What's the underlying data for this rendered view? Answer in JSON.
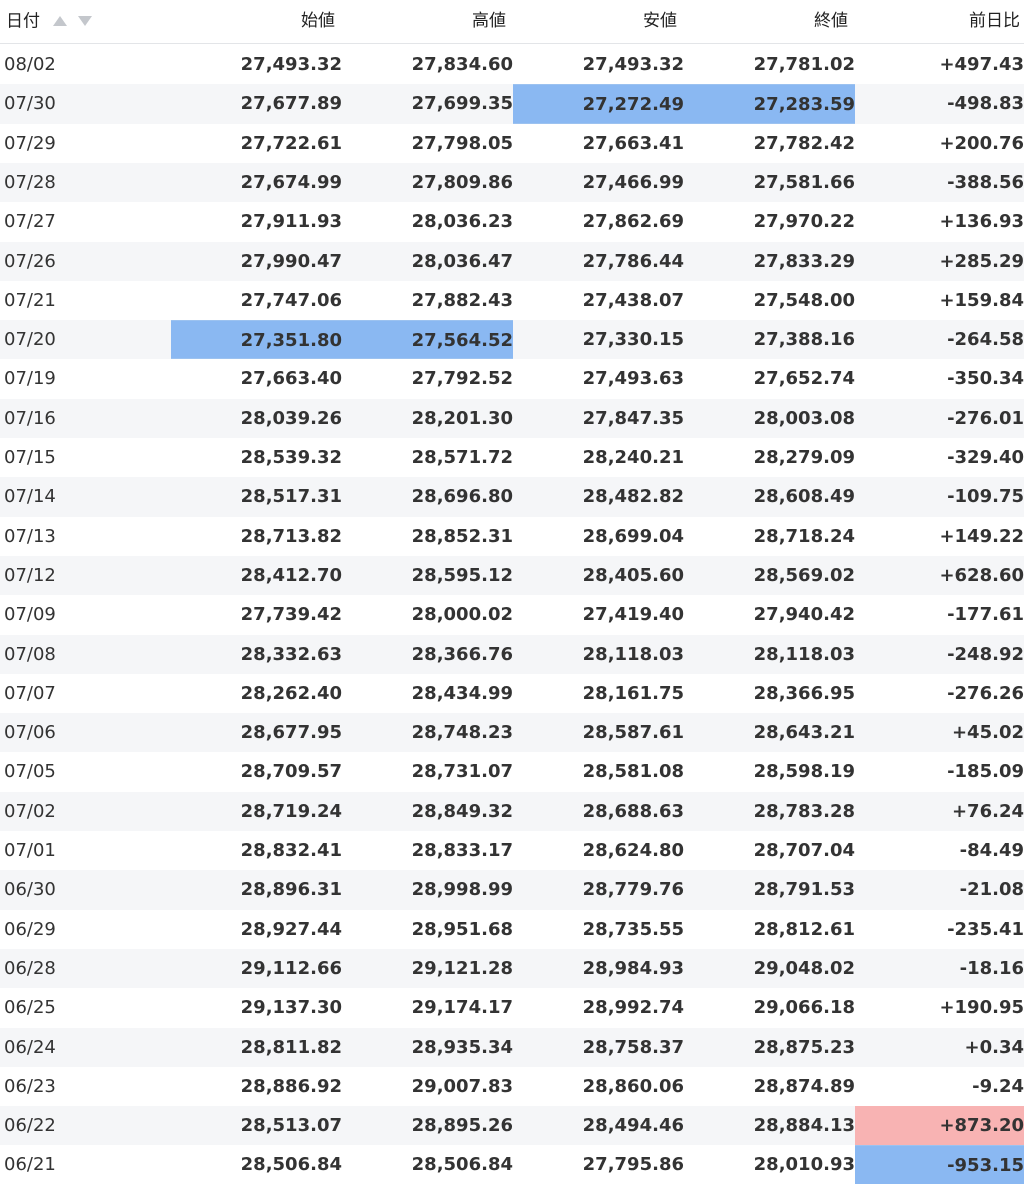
{
  "table": {
    "headers": {
      "date": "日付",
      "open": "始値",
      "high": "高値",
      "low": "安値",
      "close": "終値",
      "change": "前日比"
    },
    "sort_icons": [
      "sort-ascending-icon",
      "sort-descending-icon"
    ],
    "colors": {
      "positive": "#e8101a",
      "negative": "#1e63d2",
      "highlight_blue": "#8ab8f2",
      "highlight_red": "#f8b3b3",
      "stripe": "#f5f6f8"
    },
    "rows": [
      {
        "date": "08/02",
        "open": "27,493.32",
        "high": "27,834.60",
        "low": "27,493.32",
        "close": "27,781.02",
        "change": "+497.43"
      },
      {
        "date": "07/30",
        "open": "27,677.89",
        "high": "27,699.35",
        "low": "27,272.49",
        "close": "27,283.59",
        "change": "-498.83"
      },
      {
        "date": "07/29",
        "open": "27,722.61",
        "high": "27,798.05",
        "low": "27,663.41",
        "close": "27,782.42",
        "change": "+200.76"
      },
      {
        "date": "07/28",
        "open": "27,674.99",
        "high": "27,809.86",
        "low": "27,466.99",
        "close": "27,581.66",
        "change": "-388.56"
      },
      {
        "date": "07/27",
        "open": "27,911.93",
        "high": "28,036.23",
        "low": "27,862.69",
        "close": "27,970.22",
        "change": "+136.93"
      },
      {
        "date": "07/26",
        "open": "27,990.47",
        "high": "28,036.47",
        "low": "27,786.44",
        "close": "27,833.29",
        "change": "+285.29"
      },
      {
        "date": "07/21",
        "open": "27,747.06",
        "high": "27,882.43",
        "low": "27,438.07",
        "close": "27,548.00",
        "change": "+159.84"
      },
      {
        "date": "07/20",
        "open": "27,351.80",
        "high": "27,564.52",
        "low": "27,330.15",
        "close": "27,388.16",
        "change": "-264.58"
      },
      {
        "date": "07/19",
        "open": "27,663.40",
        "high": "27,792.52",
        "low": "27,493.63",
        "close": "27,652.74",
        "change": "-350.34"
      },
      {
        "date": "07/16",
        "open": "28,039.26",
        "high": "28,201.30",
        "low": "27,847.35",
        "close": "28,003.08",
        "change": "-276.01"
      },
      {
        "date": "07/15",
        "open": "28,539.32",
        "high": "28,571.72",
        "low": "28,240.21",
        "close": "28,279.09",
        "change": "-329.40"
      },
      {
        "date": "07/14",
        "open": "28,517.31",
        "high": "28,696.80",
        "low": "28,482.82",
        "close": "28,608.49",
        "change": "-109.75"
      },
      {
        "date": "07/13",
        "open": "28,713.82",
        "high": "28,852.31",
        "low": "28,699.04",
        "close": "28,718.24",
        "change": "+149.22"
      },
      {
        "date": "07/12",
        "open": "28,412.70",
        "high": "28,595.12",
        "low": "28,405.60",
        "close": "28,569.02",
        "change": "+628.60"
      },
      {
        "date": "07/09",
        "open": "27,739.42",
        "high": "28,000.02",
        "low": "27,419.40",
        "close": "27,940.42",
        "change": "-177.61"
      },
      {
        "date": "07/08",
        "open": "28,332.63",
        "high": "28,366.76",
        "low": "28,118.03",
        "close": "28,118.03",
        "change": "-248.92"
      },
      {
        "date": "07/07",
        "open": "28,262.40",
        "high": "28,434.99",
        "low": "28,161.75",
        "close": "28,366.95",
        "change": "-276.26"
      },
      {
        "date": "07/06",
        "open": "28,677.95",
        "high": "28,748.23",
        "low": "28,587.61",
        "close": "28,643.21",
        "change": "+45.02"
      },
      {
        "date": "07/05",
        "open": "28,709.57",
        "high": "28,731.07",
        "low": "28,581.08",
        "close": "28,598.19",
        "change": "-185.09"
      },
      {
        "date": "07/02",
        "open": "28,719.24",
        "high": "28,849.32",
        "low": "28,688.63",
        "close": "28,783.28",
        "change": "+76.24"
      },
      {
        "date": "07/01",
        "open": "28,832.41",
        "high": "28,833.17",
        "low": "28,624.80",
        "close": "28,707.04",
        "change": "-84.49"
      },
      {
        "date": "06/30",
        "open": "28,896.31",
        "high": "28,998.99",
        "low": "28,779.76",
        "close": "28,791.53",
        "change": "-21.08"
      },
      {
        "date": "06/29",
        "open": "28,927.44",
        "high": "28,951.68",
        "low": "28,735.55",
        "close": "28,812.61",
        "change": "-235.41"
      },
      {
        "date": "06/28",
        "open": "29,112.66",
        "high": "29,121.28",
        "low": "28,984.93",
        "close": "29,048.02",
        "change": "-18.16"
      },
      {
        "date": "06/25",
        "open": "29,137.30",
        "high": "29,174.17",
        "low": "28,992.74",
        "close": "29,066.18",
        "change": "+190.95"
      },
      {
        "date": "06/24",
        "open": "28,811.82",
        "high": "28,935.34",
        "low": "28,758.37",
        "close": "28,875.23",
        "change": "+0.34"
      },
      {
        "date": "06/23",
        "open": "28,886.92",
        "high": "29,007.83",
        "low": "28,860.06",
        "close": "28,874.89",
        "change": "-9.24"
      },
      {
        "date": "06/22",
        "open": "28,513.07",
        "high": "28,895.26",
        "low": "28,494.46",
        "close": "28,884.13",
        "change": "+873.20"
      },
      {
        "date": "06/21",
        "open": "28,506.84",
        "high": "28,506.84",
        "low": "27,795.86",
        "close": "28,010.93",
        "change": "-953.15"
      }
    ],
    "highlights": [
      {
        "row": 1,
        "col": "low",
        "color": "blue"
      },
      {
        "row": 1,
        "col": "close",
        "color": "blue"
      },
      {
        "row": 7,
        "col": "open",
        "color": "blue"
      },
      {
        "row": 7,
        "col": "high",
        "color": "blue"
      },
      {
        "row": 27,
        "col": "change",
        "color": "red"
      },
      {
        "row": 28,
        "col": "change",
        "color": "blue"
      }
    ]
  }
}
